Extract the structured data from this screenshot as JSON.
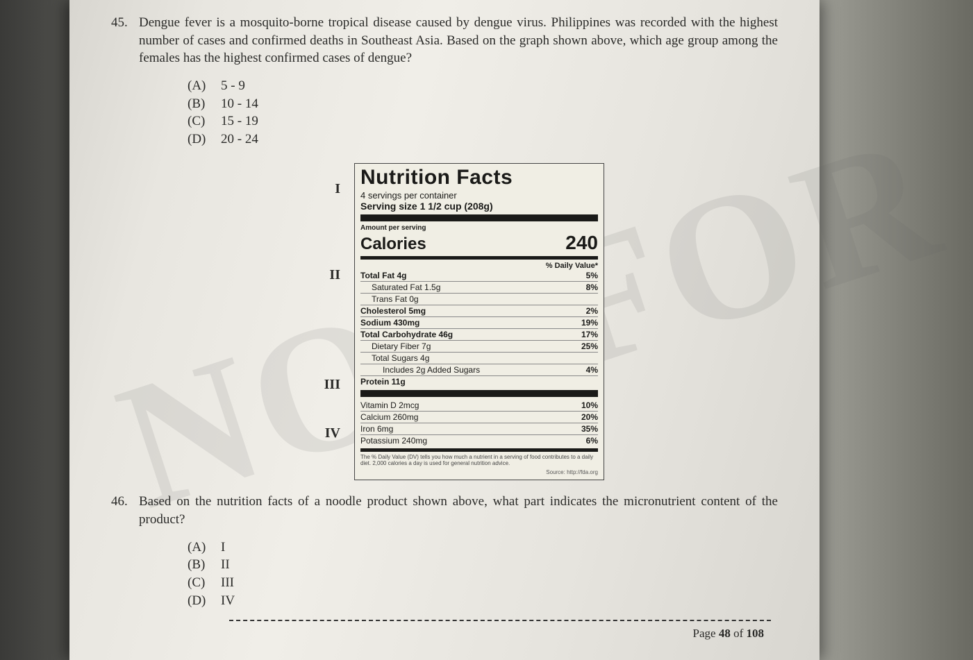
{
  "q45": {
    "number": "45.",
    "text": "Dengue fever is a mosquito-borne tropical disease caused by dengue virus. Philippines was recorded with the highest number of cases and confirmed deaths in Southeast Asia. Based on the graph shown above, which age group among the females has the highest confirmed cases of dengue?",
    "options": [
      {
        "letter": "(A)",
        "text": "5 - 9"
      },
      {
        "letter": "(B)",
        "text": "10 - 14"
      },
      {
        "letter": "(C)",
        "text": "15 - 19"
      },
      {
        "letter": "(D)",
        "text": "20 - 24"
      }
    ]
  },
  "nutrition": {
    "title": "Nutrition Facts",
    "servings_per_container": "4 servings per container",
    "serving_size": "Serving size 1 1/2 cup (208g)",
    "amount_per_serving": "Amount per serving",
    "calories_label": "Calories",
    "calories_value": "240",
    "dv_header": "% Daily Value*",
    "rows_macros": [
      {
        "name": "Total Fat 4g",
        "pct": "5%",
        "bold": true
      },
      {
        "name": "Saturated Fat 1.5g",
        "pct": "8%",
        "indent": true
      },
      {
        "name": "Trans Fat 0g",
        "pct": "",
        "indent": true
      },
      {
        "name": "Cholesterol 5mg",
        "pct": "2%",
        "bold": true
      },
      {
        "name": "Sodium 430mg",
        "pct": "19%",
        "bold": true
      },
      {
        "name": "Total Carbohydrate 46g",
        "pct": "17%",
        "bold": true
      },
      {
        "name": "Dietary Fiber 7g",
        "pct": "25%",
        "indent": true
      },
      {
        "name": "Total Sugars 4g",
        "pct": "",
        "indent": true
      },
      {
        "name": "Includes 2g Added Sugars",
        "pct": "4%",
        "indent2": true
      },
      {
        "name": "Protein 11g",
        "pct": "",
        "bold": true
      }
    ],
    "rows_micros": [
      {
        "name": "Vitamin D 2mcg",
        "pct": "10%"
      },
      {
        "name": "Calcium 260mg",
        "pct": "20%"
      },
      {
        "name": "Iron 6mg",
        "pct": "35%"
      },
      {
        "name": "Potassium 240mg",
        "pct": "6%"
      }
    ],
    "footnote": "The % Daily Value (DV) tells you how much a nutrient in a serving of food contributes to a daily diet. 2,000 calories a day is used for general nutrition advice.",
    "source": "Source: http://fda.org",
    "markers": [
      "I",
      "II",
      "III",
      "IV"
    ],
    "marker_offsets": [
      26,
      150,
      308,
      378
    ],
    "colors": {
      "label_bg": "#f0eee4",
      "border": "#444444",
      "bar": "#1a1a18",
      "row_border": "#888888"
    }
  },
  "q46": {
    "number": "46.",
    "text": "Based on the nutrition facts of a noodle product shown above, what part indicates the micronutrient content of the product?",
    "options": [
      {
        "letter": "(A)",
        "text": "I"
      },
      {
        "letter": "(B)",
        "text": "II"
      },
      {
        "letter": "(C)",
        "text": "III"
      },
      {
        "letter": "(D)",
        "text": "IV"
      }
    ]
  },
  "watermark": "NOT FOR S",
  "footer": {
    "prefix": "Page ",
    "current": "48",
    "mid": " of ",
    "total": "108"
  }
}
